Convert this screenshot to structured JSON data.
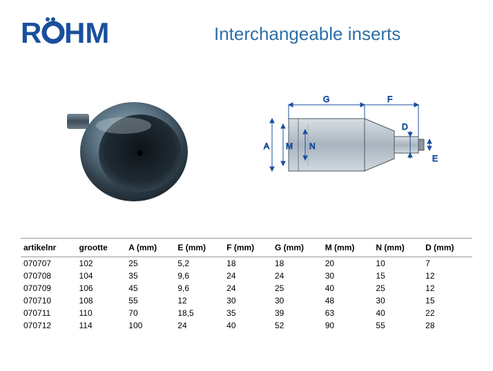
{
  "logo": {
    "text_regular": "R",
    "text_second": "HM",
    "accent": "#1a4f9c"
  },
  "title": "Interchangeable inserts",
  "title_color": "#2f6fa8",
  "title_fontsize": 26,
  "diagram_labels": {
    "A": "A",
    "M": "M",
    "N": "N",
    "G": "G",
    "F": "F",
    "D": "D",
    "E": "E"
  },
  "table": {
    "columns": [
      "artikelnr",
      "grootte",
      "A (mm)",
      "E (mm)",
      "F (mm)",
      "G (mm)",
      "M (mm)",
      "N (mm)",
      "D (mm)"
    ],
    "rows": [
      [
        "070707",
        "102",
        "25",
        "5,2",
        "18",
        "18",
        "20",
        "10",
        "7"
      ],
      [
        "070708",
        "104",
        "35",
        "9,6",
        "24",
        "24",
        "30",
        "15",
        "12"
      ],
      [
        "070709",
        "106",
        "45",
        "9,6",
        "24",
        "25",
        "40",
        "25",
        "12"
      ],
      [
        "070710",
        "108",
        "55",
        "12",
        "30",
        "30",
        "48",
        "30",
        "15"
      ],
      [
        "070711",
        "110",
        "70",
        "18,5",
        "35",
        "39",
        "63",
        "40",
        "22"
      ],
      [
        "070712",
        "114",
        "100",
        "24",
        "40",
        "52",
        "90",
        "55",
        "28"
      ]
    ],
    "header_bg": "#ffffff",
    "border_color": "#999999",
    "font_size": 12
  }
}
